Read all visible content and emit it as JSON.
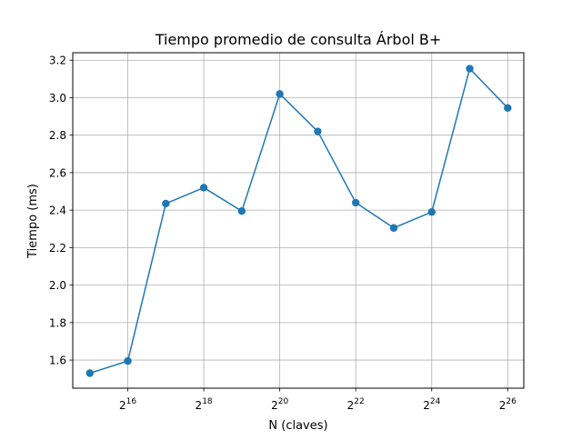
{
  "chart_data": {
    "type": "line",
    "title": "Tiempo promedio de consulta Árbol B+",
    "xlabel": "N (claves)",
    "ylabel": "Tiempo (ms)",
    "x_scale": "log2",
    "x_tick_base": "2",
    "x_ticks": [
      {
        "value": 65536,
        "exponent": "16"
      },
      {
        "value": 262144,
        "exponent": "18"
      },
      {
        "value": 1048576,
        "exponent": "20"
      },
      {
        "value": 4194304,
        "exponent": "22"
      },
      {
        "value": 16777216,
        "exponent": "24"
      },
      {
        "value": 67108864,
        "exponent": "26"
      }
    ],
    "y_ticks": [
      "1.6",
      "1.8",
      "2.0",
      "2.2",
      "2.4",
      "2.6",
      "2.8",
      "3.0",
      "3.2"
    ],
    "xlim": [
      24000,
      90000000
    ],
    "ylim": [
      1.45,
      3.24
    ],
    "grid": true,
    "color": "#1f77b4",
    "series": [
      {
        "x": [
          32768,
          65536,
          131072,
          262144,
          524288,
          1048576,
          2097152,
          4194304,
          8388608,
          16777216,
          33554432,
          67108864
        ],
        "values": [
          1.53,
          1.595,
          2.435,
          2.52,
          2.395,
          3.02,
          2.82,
          2.44,
          2.305,
          2.39,
          3.155,
          2.945
        ]
      }
    ]
  }
}
